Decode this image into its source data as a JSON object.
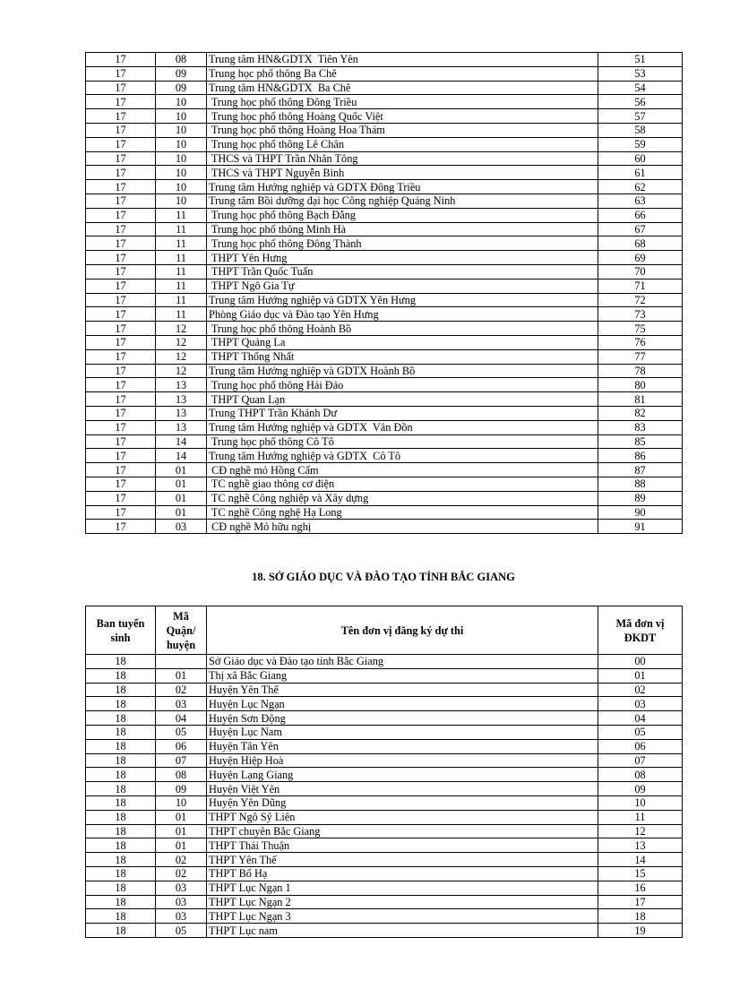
{
  "table1": {
    "rows": [
      [
        "17",
        "08",
        "Trung tâm HN&GDTX  Tiên Yên",
        "51"
      ],
      [
        "17",
        "09",
        "Trung học phổ thông Ba Chẽ",
        "53"
      ],
      [
        "17",
        "09",
        "Trung tâm HN&GDTX  Ba Chẽ",
        "54"
      ],
      [
        "17",
        "10",
        " Trung học phổ thông Đông Triều",
        "56"
      ],
      [
        "17",
        "10",
        " Trung học phổ thông Hoàng Quốc Việt",
        "57"
      ],
      [
        "17",
        "10",
        " Trung học phổ thông Hoàng Hoa Thám",
        "58"
      ],
      [
        "17",
        "10",
        " Trung học phổ thông Lê Chân",
        "59"
      ],
      [
        "17",
        "10",
        " THCS và THPT Trần Nhân Tông",
        "60"
      ],
      [
        "17",
        "10",
        " THCS và THPT Nguyễn Bình",
        "61"
      ],
      [
        "17",
        "10",
        "Trung tâm Hướng nghiệp và GDTX Đông Triều",
        "62"
      ],
      [
        "17",
        "10",
        "Trung tâm Bồi dưỡng đại học Công nghiệp Quảng Ninh",
        "63"
      ],
      [
        "17",
        "11",
        " Trung học phổ thông Bạch Đằng",
        "66"
      ],
      [
        "17",
        "11",
        " Trung học phổ thông Minh Hà",
        "67"
      ],
      [
        "17",
        "11",
        " Trung học phổ thông Đông Thành",
        "68"
      ],
      [
        "17",
        "11",
        " THPT Yên Hưng",
        "69"
      ],
      [
        "17",
        "11",
        " THPT Trần Quốc Tuấn",
        "70"
      ],
      [
        "17",
        "11",
        " THPT Ngô Gia Tự",
        "71"
      ],
      [
        "17",
        "11",
        "Trung tâm Hướng nghiệp và GDTX Yên Hưng",
        "72"
      ],
      [
        "17",
        "11",
        "Phòng Giáo dục và Đào tạo Yên Hưng",
        "73"
      ],
      [
        "17",
        "12",
        " Trung học phổ thông Hoành Bồ",
        "75"
      ],
      [
        "17",
        "12",
        " THPT Quảng La",
        "76"
      ],
      [
        "17",
        "12",
        " THPT Thống Nhất",
        "77"
      ],
      [
        "17",
        "12",
        "Trung tâm Hướng nghiệp và GDTX Hoành Bồ",
        "78"
      ],
      [
        "17",
        "13",
        " Trung học phổ thông Hải Đảo",
        "80"
      ],
      [
        "17",
        "13",
        " THPT Quan Lạn",
        "81"
      ],
      [
        "17",
        "13",
        "Trung THPT Trần Khánh Dư",
        "82"
      ],
      [
        "17",
        "13",
        "Trung tâm Hướng nghiệp và GDTX  Vân Đồn",
        "83"
      ],
      [
        "17",
        "14",
        " Trung học phổ thông Cô Tô",
        "85"
      ],
      [
        "17",
        "14",
        "Trung tâm Hướng nghiệp và GDTX  Cô Tô",
        "86"
      ],
      [
        "17",
        "01",
        " CĐ nghề mỏ Hồng Cẩm",
        "87"
      ],
      [
        "17",
        "01",
        " TC nghề giao thông cơ điện",
        "88"
      ],
      [
        "17",
        "01",
        " TC nghề Công nghiệp và Xây dựng",
        "89"
      ],
      [
        "17",
        "01",
        " TC nghề Công nghệ Hạ Long",
        "90"
      ],
      [
        "17",
        "03",
        " CĐ nghề Mỏ hữu nghị",
        "91"
      ]
    ]
  },
  "section_title": "18. SỞ GIÁO DỤC VÀ ĐÀO TẠO TỈNH BẮC GIANG",
  "table2": {
    "headers": [
      "Ban tuyển sinh",
      "Mã Quận/ huyện",
      "Tên đơn vị đăng ký dự thi",
      "Mã đơn vị ĐKDT"
    ],
    "rows": [
      [
        "18",
        "",
        "Sở Giáo dục và Đào tạo tỉnh Bắc Giang",
        "00"
      ],
      [
        "18",
        "01",
        "Thị xã Bắc Giang",
        "01"
      ],
      [
        "18",
        "02",
        "Huyện Yên Thế",
        "02"
      ],
      [
        "18",
        "03",
        "Huyện Lục Ngạn",
        "03"
      ],
      [
        "18",
        "04",
        "Huyện Sơn Động",
        "04"
      ],
      [
        "18",
        "05",
        "Huyện Lục Nam",
        "05"
      ],
      [
        "18",
        "06",
        "Huyện Tân Yên",
        "06"
      ],
      [
        "18",
        "07",
        "Huyện Hiệp Hoà",
        "07"
      ],
      [
        "18",
        "08",
        "Huyện Lạng Giang",
        "08"
      ],
      [
        "18",
        "09",
        "Huyện Việt Yên",
        "09"
      ],
      [
        "18",
        "10",
        "Huyện Yên Dũng",
        "10"
      ],
      [
        "18",
        "01",
        "THPT Ngô Sỹ Liên",
        "11"
      ],
      [
        "18",
        "01",
        "THPT chuyên Bắc Giang",
        "12"
      ],
      [
        "18",
        "01",
        "THPT Thái Thuận",
        "13"
      ],
      [
        "18",
        "02",
        "THPT Yên Thế",
        "14"
      ],
      [
        "18",
        "02",
        "THPT Bố Hạ",
        "15"
      ],
      [
        "18",
        "03",
        "THPT Lục Ngạn 1",
        "16"
      ],
      [
        "18",
        "03",
        "THPT Lục Ngạn 2",
        "17"
      ],
      [
        "18",
        "03",
        "THPT Lục Ngạn 3",
        "18"
      ],
      [
        "18",
        "05",
        "THPT Lục nam",
        "19"
      ]
    ]
  }
}
